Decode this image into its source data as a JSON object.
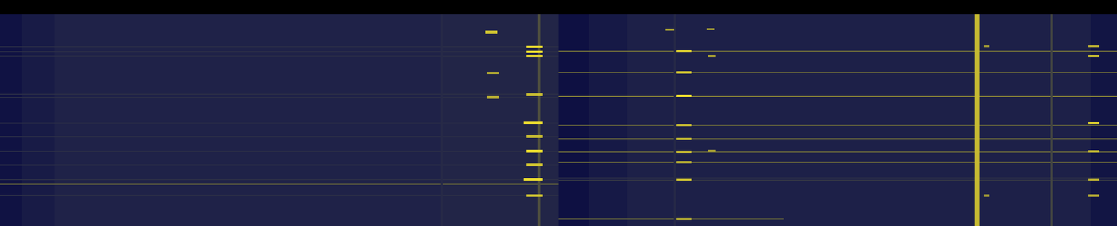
{
  "chart_data": {
    "type": "heatmap",
    "tick_labels": false,
    "xlim": [
      0,
      2048
    ],
    "ylim": [
      0,
      389
    ],
    "color_range": [
      0,
      100
    ],
    "cells": [
      [
        0,
        40,
        0,
        389,
        8
      ],
      [
        40,
        100,
        0,
        389,
        16
      ],
      [
        100,
        810,
        0,
        389,
        24
      ],
      [
        810,
        1024,
        0,
        389,
        27
      ],
      [
        1024,
        1080,
        0,
        389,
        6
      ],
      [
        1080,
        1150,
        0,
        389,
        14
      ],
      [
        1150,
        2000,
        0,
        389,
        21
      ],
      [
        2000,
        2048,
        0,
        389,
        10
      ],
      [
        0,
        1024,
        59,
        61,
        40
      ],
      [
        0,
        1024,
        68,
        70,
        40
      ],
      [
        0,
        1024,
        76,
        78,
        40
      ],
      [
        0,
        1024,
        146,
        148,
        40
      ],
      [
        0,
        1024,
        152,
        154,
        38
      ],
      [
        0,
        1024,
        199,
        201,
        36
      ],
      [
        0,
        1024,
        224,
        226,
        38
      ],
      [
        0,
        1024,
        251,
        253,
        38
      ],
      [
        0,
        1024,
        276,
        278,
        38
      ],
      [
        0,
        1024,
        303,
        305,
        40
      ],
      [
        0,
        1024,
        311,
        313,
        62
      ],
      [
        0,
        1024,
        332,
        334,
        38
      ],
      [
        1024,
        2048,
        67,
        69,
        68
      ],
      [
        1024,
        2048,
        106,
        108,
        62
      ],
      [
        1024,
        2048,
        150,
        152,
        72
      ],
      [
        1024,
        2048,
        203,
        205,
        64
      ],
      [
        1024,
        2048,
        228,
        230,
        64
      ],
      [
        1024,
        2048,
        252,
        254,
        66
      ],
      [
        1024,
        2048,
        271,
        273,
        64
      ],
      [
        1024,
        2048,
        300,
        302,
        40
      ],
      [
        1024,
        2048,
        304,
        306,
        44
      ],
      [
        1024,
        1437,
        375,
        377,
        60
      ],
      [
        808,
        812,
        0,
        389,
        34
      ],
      [
        986,
        991,
        0,
        389,
        55
      ],
      [
        1235,
        1239,
        0,
        389,
        32
      ],
      [
        1787,
        1796,
        0,
        389,
        88
      ],
      [
        1926,
        1930,
        0,
        389,
        50
      ],
      [
        890,
        912,
        30,
        36,
        92
      ],
      [
        965,
        995,
        58,
        62,
        96
      ],
      [
        965,
        995,
        67,
        71,
        98
      ],
      [
        965,
        995,
        75,
        79,
        94
      ],
      [
        893,
        915,
        106,
        110,
        80
      ],
      [
        893,
        915,
        150,
        155,
        85
      ],
      [
        965,
        995,
        145,
        150,
        92
      ],
      [
        960,
        995,
        197,
        202,
        98
      ],
      [
        965,
        995,
        222,
        227,
        90
      ],
      [
        965,
        995,
        249,
        254,
        96
      ],
      [
        965,
        995,
        274,
        279,
        90
      ],
      [
        960,
        995,
        301,
        306,
        100
      ],
      [
        965,
        995,
        331,
        335,
        92
      ],
      [
        1240,
        1268,
        66,
        70,
        95
      ],
      [
        1240,
        1268,
        105,
        109,
        90
      ],
      [
        1240,
        1268,
        148,
        152,
        98
      ],
      [
        1240,
        1268,
        202,
        206,
        88
      ],
      [
        1240,
        1268,
        227,
        231,
        86
      ],
      [
        1240,
        1268,
        251,
        255,
        88
      ],
      [
        1240,
        1268,
        270,
        274,
        82
      ],
      [
        1240,
        1268,
        302,
        306,
        94
      ],
      [
        1240,
        1268,
        374,
        378,
        82
      ],
      [
        1220,
        1236,
        27,
        30,
        80
      ],
      [
        1296,
        1310,
        26,
        29,
        78
      ],
      [
        1298,
        1312,
        75,
        79,
        78
      ],
      [
        1298,
        1312,
        249,
        253,
        78
      ],
      [
        1804,
        1814,
        57,
        61,
        80
      ],
      [
        1804,
        1814,
        331,
        335,
        78
      ],
      [
        1995,
        2015,
        57,
        61,
        88
      ],
      [
        1995,
        2015,
        75,
        79,
        86
      ],
      [
        1995,
        2015,
        198,
        202,
        92
      ],
      [
        1995,
        2015,
        250,
        254,
        86
      ],
      [
        1995,
        2015,
        302,
        306,
        88
      ],
      [
        1995,
        2015,
        331,
        335,
        84
      ]
    ]
  }
}
